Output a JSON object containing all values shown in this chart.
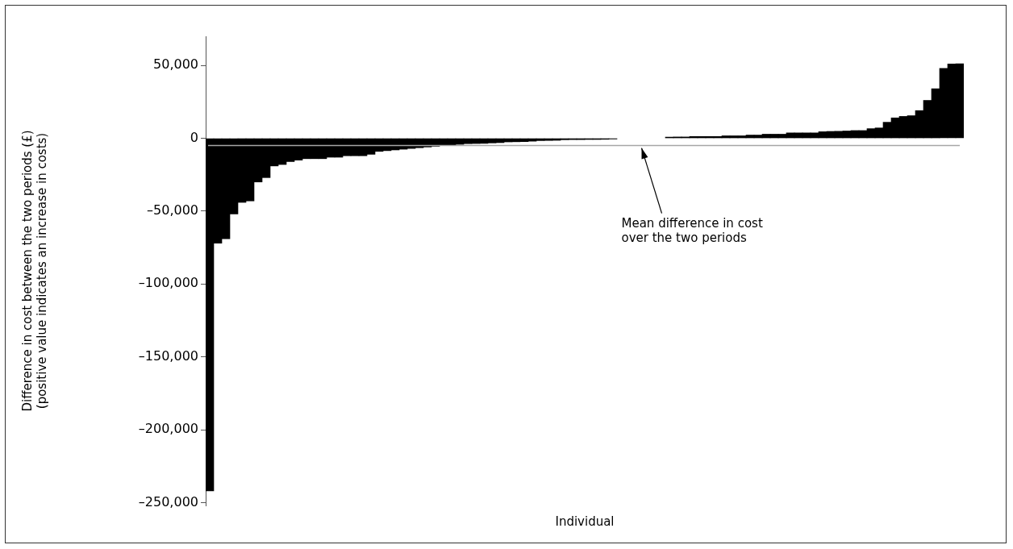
{
  "chart_data": {
    "type": "bar",
    "xlabel": "Individual",
    "ylabel": [
      "Difference in cost between the two periods (£)",
      "(positive value indicates an increase in costs)"
    ],
    "categories": [
      null,
      null,
      null,
      null,
      null,
      null,
      null,
      null,
      null,
      null,
      null,
      null,
      null,
      null,
      null,
      null,
      null,
      null,
      null,
      null,
      null,
      null,
      null,
      null,
      null,
      null,
      null,
      null,
      null,
      null,
      null,
      null,
      null,
      null,
      null,
      null,
      null,
      null,
      null,
      null,
      null,
      null,
      null,
      null,
      null,
      null,
      null,
      null,
      null,
      null,
      null,
      null,
      null,
      null,
      null,
      null,
      null,
      null,
      null,
      null,
      null,
      null,
      null,
      null,
      null,
      null,
      null,
      null,
      null,
      null,
      null,
      null,
      null,
      null,
      null,
      null,
      null,
      null,
      null,
      null,
      null,
      null,
      null,
      null,
      null,
      null,
      null,
      null,
      null,
      null,
      null,
      null,
      null,
      null
    ],
    "values": [
      -242000,
      -72000,
      -69000,
      -52000,
      -44000,
      -43000,
      -30000,
      -27000,
      -19000,
      -18000,
      -16000,
      -15000,
      -14000,
      -14000,
      -14000,
      -13000,
      -13000,
      -12000,
      -12000,
      -12000,
      -11000,
      -9000,
      -8500,
      -8000,
      -7500,
      -7000,
      -6500,
      -6000,
      -5500,
      -4800,
      -4500,
      -4200,
      -3700,
      -3600,
      -3500,
      -3200,
      -3000,
      -2500,
      -2400,
      -2300,
      -2000,
      -1600,
      -1500,
      -1400,
      -1000,
      -900,
      -900,
      -800,
      -800,
      -700,
      -500,
      null,
      null,
      null,
      null,
      null,
      null,
      800,
      900,
      900,
      1200,
      1200,
      1200,
      1200,
      1700,
      1700,
      1700,
      2200,
      2200,
      2800,
      2800,
      2800,
      3700,
      3700,
      3700,
      3700,
      4500,
      4700,
      4800,
      5000,
      5300,
      5300,
      6600,
      7100,
      11000,
      14000,
      15000,
      15500,
      19000,
      26000,
      34000,
      48000,
      51000,
      51200
    ],
    "color": "#000000",
    "ylim": [
      -252000,
      70000
    ],
    "yticks": [
      {
        "value": -250000,
        "label": "–250,000"
      },
      {
        "value": -200000,
        "label": "–200,000"
      },
      {
        "value": -150000,
        "label": "–150,000"
      },
      {
        "value": -100000,
        "label": "–100,000"
      },
      {
        "value": -50000,
        "label": "–50,000"
      },
      0,
      {
        "value": 50000,
        "label": "50,000"
      }
    ],
    "tick_labels": "y",
    "grid": false,
    "legend": false,
    "ref_lines": [
      {
        "axis": "y",
        "value": -5000,
        "label": "Mean difference in cost\nover the two periods",
        "color": "#a6a6a6"
      }
    ]
  }
}
